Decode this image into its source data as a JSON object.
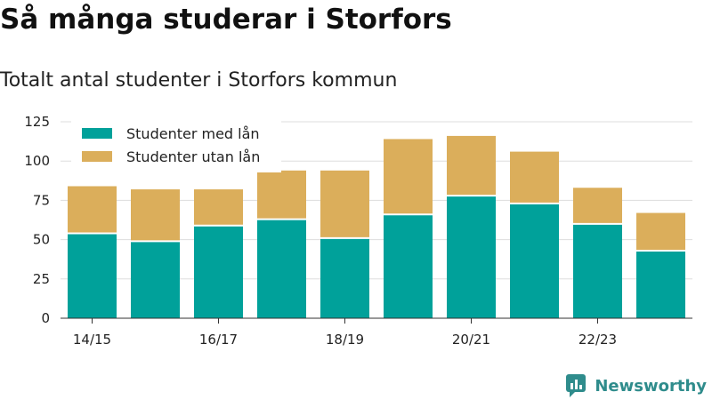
{
  "title": "Så många studerar i Storfors",
  "subtitle": "Totalt antal studenter i Storfors kommun",
  "brand": {
    "name": "Newsworthy",
    "icon": "newsworthy-logo-icon"
  },
  "colors": {
    "with_loan": "#00a19a",
    "without_loan": "#dbae5b",
    "grid": "#dddddd",
    "axis": "#333333",
    "brand": "#2f8c8c"
  },
  "chart_data": {
    "type": "bar",
    "stacked": true,
    "categories": [
      "14/15",
      "15/16",
      "16/17",
      "17/18",
      "18/19",
      "19/20",
      "20/21",
      "21/22",
      "22/23",
      "23/24"
    ],
    "x_tick_labels": [
      "14/15",
      "",
      "16/17",
      "",
      "18/19",
      "",
      "20/21",
      "",
      "22/23",
      ""
    ],
    "series": [
      {
        "name": "Studenter med lån",
        "values": [
          54,
          49,
          59,
          63,
          51,
          66,
          78,
          73,
          60,
          43
        ]
      },
      {
        "name": "Studenter utan lån",
        "values": [
          30,
          33,
          23,
          31,
          43,
          48,
          38,
          33,
          23,
          24
        ]
      }
    ],
    "y_ticks": [
      "0",
      "25",
      "50",
      "75",
      "100",
      "125"
    ],
    "ylim": [
      0,
      125
    ],
    "grid": true,
    "legend_position": "top-left"
  }
}
